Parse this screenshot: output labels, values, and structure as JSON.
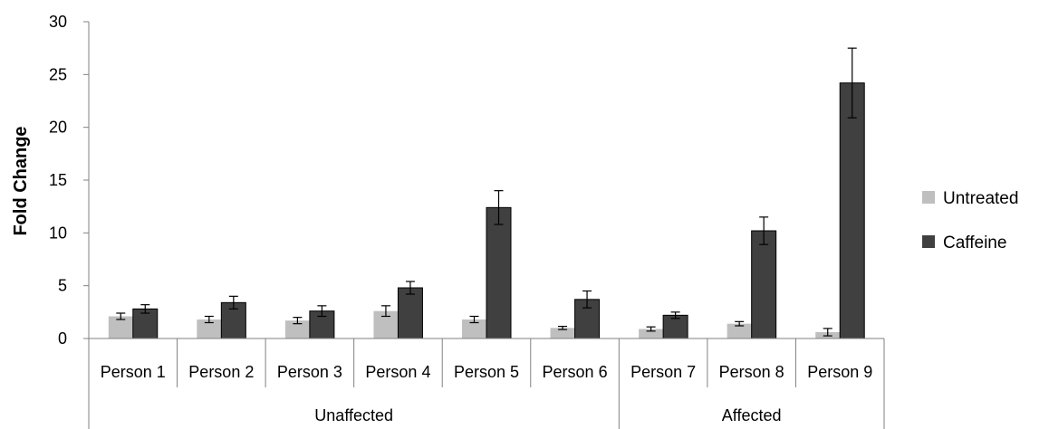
{
  "chart_data": {
    "type": "bar",
    "ylabel": "Fold Change",
    "ylim": [
      0,
      30
    ],
    "yticks": [
      0,
      5,
      10,
      15,
      20,
      25,
      30
    ],
    "categories": [
      "Person 1",
      "Person 2",
      "Person 3",
      "Person 4",
      "Person 5",
      "Person 6",
      "Person 7",
      "Person 8",
      "Person 9"
    ],
    "groups": [
      {
        "label": "Unaffected",
        "categories": [
          "Person 1",
          "Person 2",
          "Person 3",
          "Person 4",
          "Person 5",
          "Person 6"
        ]
      },
      {
        "label": "Affected",
        "categories": [
          "Person 7",
          "Person 8",
          "Person 9"
        ]
      }
    ],
    "series": [
      {
        "name": "Untreated",
        "color": "#bfbfbf",
        "values": [
          2.1,
          1.8,
          1.7,
          2.6,
          1.8,
          1.0,
          0.9,
          1.4,
          0.6
        ],
        "errors": [
          0.3,
          0.3,
          0.3,
          0.5,
          0.3,
          0.15,
          0.2,
          0.2,
          0.35
        ]
      },
      {
        "name": "Caffeine",
        "color": "#404040",
        "values": [
          2.8,
          3.4,
          2.6,
          4.8,
          12.4,
          3.7,
          2.2,
          10.2,
          24.2
        ],
        "errors": [
          0.4,
          0.6,
          0.5,
          0.6,
          1.6,
          0.8,
          0.3,
          1.3,
          3.3
        ]
      }
    ],
    "legend": "right",
    "grid": false
  }
}
